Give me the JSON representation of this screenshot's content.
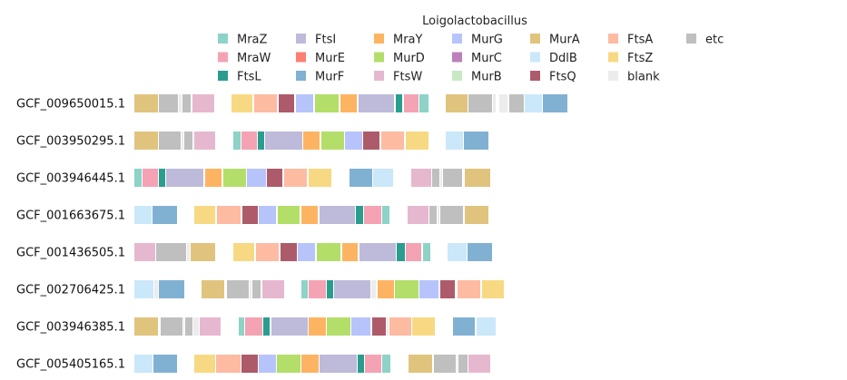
{
  "chart_data": {
    "type": "gene-arrangement",
    "title": "Loigolactobacillus",
    "x_range": [
      0,
      570
    ],
    "legend_placement": "top",
    "legend": [
      {
        "name": "MraZ",
        "color": "#8dd3c7"
      },
      {
        "name": "MraW",
        "color": "#f4a3b4"
      },
      {
        "name": "FtsL",
        "color": "#2a9d8f"
      },
      {
        "name": "FtsI",
        "color": "#bebada"
      },
      {
        "name": "MurE",
        "color": "#fb8072"
      },
      {
        "name": "MurF",
        "color": "#80b1d3"
      },
      {
        "name": "MraY",
        "color": "#fdb462"
      },
      {
        "name": "MurD",
        "color": "#b3de69"
      },
      {
        "name": "FtsW",
        "color": "#e6b8cf"
      },
      {
        "name": "MurG",
        "color": "#b7c4fb"
      },
      {
        "name": "MurC",
        "color": "#bc80bd"
      },
      {
        "name": "MurB",
        "color": "#c8e8c4"
      },
      {
        "name": "MurA",
        "color": "#e0c47e"
      },
      {
        "name": "DdlB",
        "color": "#cbe7fa"
      },
      {
        "name": "FtsQ",
        "color": "#ad5b6b"
      },
      {
        "name": "FtsA",
        "color": "#fdbba2"
      },
      {
        "name": "FtsZ",
        "color": "#f8d983"
      },
      {
        "name": "blank",
        "color": "#ececec"
      },
      {
        "name": "etc",
        "color": "#bfbfbf"
      }
    ],
    "genomes": [
      {
        "name": "GCF_009650015.1",
        "genes": [
          {
            "g": "MurA",
            "start": 0,
            "end": 26
          },
          {
            "g": "etc",
            "start": 27,
            "end": 48
          },
          {
            "g": "blank",
            "start": 49,
            "end": 52
          },
          {
            "g": "etc",
            "start": 53,
            "end": 62
          },
          {
            "g": "FtsW",
            "start": 64,
            "end": 88
          },
          {
            "g": "FtsZ",
            "start": 107,
            "end": 130
          },
          {
            "g": "FtsA",
            "start": 132,
            "end": 157
          },
          {
            "g": "FtsQ",
            "start": 159,
            "end": 176
          },
          {
            "g": "MurG",
            "start": 178,
            "end": 197
          },
          {
            "g": "MurD",
            "start": 199,
            "end": 225
          },
          {
            "g": "MraY",
            "start": 227,
            "end": 245
          },
          {
            "g": "FtsI",
            "start": 247,
            "end": 286
          },
          {
            "g": "FtsL",
            "start": 288,
            "end": 295
          },
          {
            "g": "MraW",
            "start": 297,
            "end": 313
          },
          {
            "g": "MraZ",
            "start": 314,
            "end": 324
          },
          {
            "g": "MurA",
            "start": 343,
            "end": 367
          },
          {
            "g": "etc",
            "start": 368,
            "end": 394
          },
          {
            "g": "blank",
            "start": 395,
            "end": 398
          },
          {
            "g": "blank",
            "start": 402,
            "end": 411
          },
          {
            "g": "etc",
            "start": 413,
            "end": 429
          },
          {
            "g": "DdlB",
            "start": 430,
            "end": 449
          },
          {
            "g": "MurF",
            "start": 450,
            "end": 477
          }
        ]
      },
      {
        "name": "GCF_003950295.1",
        "genes": [
          {
            "g": "MurA",
            "start": 0,
            "end": 26
          },
          {
            "g": "etc",
            "start": 27,
            "end": 51
          },
          {
            "g": "blank",
            "start": 52,
            "end": 54
          },
          {
            "g": "etc",
            "start": 55,
            "end": 64
          },
          {
            "g": "FtsW",
            "start": 66,
            "end": 89
          },
          {
            "g": "MraZ",
            "start": 109,
            "end": 117
          },
          {
            "g": "MraW",
            "start": 118,
            "end": 135
          },
          {
            "g": "FtsL",
            "start": 136,
            "end": 143
          },
          {
            "g": "FtsI",
            "start": 144,
            "end": 185
          },
          {
            "g": "MraY",
            "start": 186,
            "end": 204
          },
          {
            "g": "MurD",
            "start": 206,
            "end": 231
          },
          {
            "g": "MurG",
            "start": 232,
            "end": 251
          },
          {
            "g": "FtsQ",
            "start": 252,
            "end": 270
          },
          {
            "g": "FtsA",
            "start": 272,
            "end": 297
          },
          {
            "g": "FtsZ",
            "start": 299,
            "end": 324
          },
          {
            "g": "DdlB",
            "start": 343,
            "end": 362
          },
          {
            "g": "MurF",
            "start": 363,
            "end": 390
          }
        ]
      },
      {
        "name": "GCF_003946445.1",
        "genes": [
          {
            "g": "MraZ",
            "start": 0,
            "end": 8
          },
          {
            "g": "MraW",
            "start": 9,
            "end": 26
          },
          {
            "g": "FtsL",
            "start": 27,
            "end": 34
          },
          {
            "g": "FtsI",
            "start": 35,
            "end": 76
          },
          {
            "g": "MraY",
            "start": 78,
            "end": 96
          },
          {
            "g": "MurD",
            "start": 98,
            "end": 123
          },
          {
            "g": "MurG",
            "start": 124,
            "end": 145
          },
          {
            "g": "FtsQ",
            "start": 146,
            "end": 163
          },
          {
            "g": "FtsA",
            "start": 165,
            "end": 190
          },
          {
            "g": "FtsZ",
            "start": 192,
            "end": 217
          },
          {
            "g": "MurF",
            "start": 237,
            "end": 262
          },
          {
            "g": "DdlB",
            "start": 263,
            "end": 285
          },
          {
            "g": "FtsW",
            "start": 305,
            "end": 327
          },
          {
            "g": "etc",
            "start": 328,
            "end": 336
          },
          {
            "g": "blank",
            "start": 337,
            "end": 339
          },
          {
            "g": "etc",
            "start": 340,
            "end": 361
          },
          {
            "g": "MurA",
            "start": 364,
            "end": 392
          }
        ]
      },
      {
        "name": "GCF_001663675.1",
        "genes": [
          {
            "g": "DdlB",
            "start": 0,
            "end": 19
          },
          {
            "g": "MurF",
            "start": 20,
            "end": 47
          },
          {
            "g": "FtsZ",
            "start": 66,
            "end": 89
          },
          {
            "g": "FtsA",
            "start": 91,
            "end": 117
          },
          {
            "g": "FtsQ",
            "start": 119,
            "end": 136
          },
          {
            "g": "MurG",
            "start": 137,
            "end": 156
          },
          {
            "g": "MurD",
            "start": 158,
            "end": 182
          },
          {
            "g": "MraY",
            "start": 184,
            "end": 202
          },
          {
            "g": "FtsI",
            "start": 204,
            "end": 243
          },
          {
            "g": "FtsL",
            "start": 244,
            "end": 252
          },
          {
            "g": "MraW",
            "start": 253,
            "end": 272
          },
          {
            "g": "MraZ",
            "start": 273,
            "end": 281
          },
          {
            "g": "FtsW",
            "start": 301,
            "end": 324
          },
          {
            "g": "etc",
            "start": 325,
            "end": 333
          },
          {
            "g": "blank",
            "start": 334,
            "end": 336
          },
          {
            "g": "etc",
            "start": 337,
            "end": 362
          },
          {
            "g": "MurA",
            "start": 364,
            "end": 390
          }
        ]
      },
      {
        "name": "GCF_001436505.1",
        "genes": [
          {
            "g": "FtsW",
            "start": 0,
            "end": 23
          },
          {
            "g": "etc",
            "start": 24,
            "end": 57
          },
          {
            "g": "blank",
            "start": 58,
            "end": 61
          },
          {
            "g": "MurA",
            "start": 62,
            "end": 89
          },
          {
            "g": "FtsZ",
            "start": 109,
            "end": 132
          },
          {
            "g": "FtsA",
            "start": 134,
            "end": 159
          },
          {
            "g": "FtsQ",
            "start": 161,
            "end": 179
          },
          {
            "g": "MurG",
            "start": 180,
            "end": 199
          },
          {
            "g": "MurD",
            "start": 201,
            "end": 227
          },
          {
            "g": "MraY",
            "start": 229,
            "end": 246
          },
          {
            "g": "FtsI",
            "start": 248,
            "end": 288
          },
          {
            "g": "FtsL",
            "start": 289,
            "end": 298
          },
          {
            "g": "MraW",
            "start": 299,
            "end": 316
          },
          {
            "g": "MraZ",
            "start": 318,
            "end": 326
          },
          {
            "g": "DdlB",
            "start": 345,
            "end": 366
          },
          {
            "g": "MurF",
            "start": 367,
            "end": 394
          }
        ]
      },
      {
        "name": "GCF_002706425.1",
        "genes": [
          {
            "g": "DdlB",
            "start": 0,
            "end": 21
          },
          {
            "g": "blank",
            "start": 22,
            "end": 26
          },
          {
            "g": "MurF",
            "start": 27,
            "end": 55
          },
          {
            "g": "MurA",
            "start": 74,
            "end": 99
          },
          {
            "g": "etc",
            "start": 102,
            "end": 126
          },
          {
            "g": "blank",
            "start": 127,
            "end": 129
          },
          {
            "g": "etc",
            "start": 130,
            "end": 139
          },
          {
            "g": "FtsW",
            "start": 141,
            "end": 165
          },
          {
            "g": "MraZ",
            "start": 184,
            "end": 191
          },
          {
            "g": "MraW",
            "start": 192,
            "end": 211
          },
          {
            "g": "FtsL",
            "start": 212,
            "end": 219
          },
          {
            "g": "FtsI",
            "start": 220,
            "end": 260
          },
          {
            "g": "blank",
            "start": 261,
            "end": 266
          },
          {
            "g": "MraY",
            "start": 268,
            "end": 286
          },
          {
            "g": "MurD",
            "start": 287,
            "end": 313
          },
          {
            "g": "MurG",
            "start": 314,
            "end": 335
          },
          {
            "g": "FtsQ",
            "start": 337,
            "end": 353
          },
          {
            "g": "FtsA",
            "start": 356,
            "end": 381
          },
          {
            "g": "FtsZ",
            "start": 383,
            "end": 407
          }
        ]
      },
      {
        "name": "GCF_003946385.1",
        "genes": [
          {
            "g": "MurA",
            "start": 0,
            "end": 26
          },
          {
            "g": "etc",
            "start": 29,
            "end": 53
          },
          {
            "g": "blank",
            "start": 54,
            "end": 55
          },
          {
            "g": "etc",
            "start": 56,
            "end": 64
          },
          {
            "g": "blank",
            "start": 65,
            "end": 71
          },
          {
            "g": "FtsW",
            "start": 72,
            "end": 95
          },
          {
            "g": "MraZ",
            "start": 115,
            "end": 121
          },
          {
            "g": "MraW",
            "start": 122,
            "end": 141
          },
          {
            "g": "FtsL",
            "start": 142,
            "end": 149
          },
          {
            "g": "FtsI",
            "start": 151,
            "end": 191
          },
          {
            "g": "MraY",
            "start": 192,
            "end": 211
          },
          {
            "g": "MurD",
            "start": 212,
            "end": 238
          },
          {
            "g": "MurG",
            "start": 239,
            "end": 260
          },
          {
            "g": "FtsQ",
            "start": 262,
            "end": 277
          },
          {
            "g": "blank",
            "start": 278,
            "end": 280
          },
          {
            "g": "FtsA",
            "start": 281,
            "end": 305
          },
          {
            "g": "FtsZ",
            "start": 306,
            "end": 331
          },
          {
            "g": "MurF",
            "start": 351,
            "end": 375
          },
          {
            "g": "DdlB",
            "start": 377,
            "end": 398
          }
        ]
      },
      {
        "name": "GCF_005405165.1",
        "genes": [
          {
            "g": "DdlB",
            "start": 0,
            "end": 20
          },
          {
            "g": "MurF",
            "start": 21,
            "end": 47
          },
          {
            "g": "FtsZ",
            "start": 66,
            "end": 89
          },
          {
            "g": "FtsA",
            "start": 90,
            "end": 117
          },
          {
            "g": "FtsQ",
            "start": 118,
            "end": 136
          },
          {
            "g": "MurG",
            "start": 137,
            "end": 156
          },
          {
            "g": "MurD",
            "start": 157,
            "end": 183
          },
          {
            "g": "MraY",
            "start": 184,
            "end": 203
          },
          {
            "g": "FtsI",
            "start": 204,
            "end": 245
          },
          {
            "g": "FtsL",
            "start": 246,
            "end": 253
          },
          {
            "g": "MraW",
            "start": 254,
            "end": 272
          },
          {
            "g": "MraZ",
            "start": 273,
            "end": 282
          },
          {
            "g": "MurA",
            "start": 302,
            "end": 328
          },
          {
            "g": "etc",
            "start": 330,
            "end": 354
          },
          {
            "g": "blank",
            "start": 355,
            "end": 356
          },
          {
            "g": "etc",
            "start": 357,
            "end": 367
          },
          {
            "g": "FtsW",
            "start": 368,
            "end": 392
          }
        ]
      }
    ]
  }
}
